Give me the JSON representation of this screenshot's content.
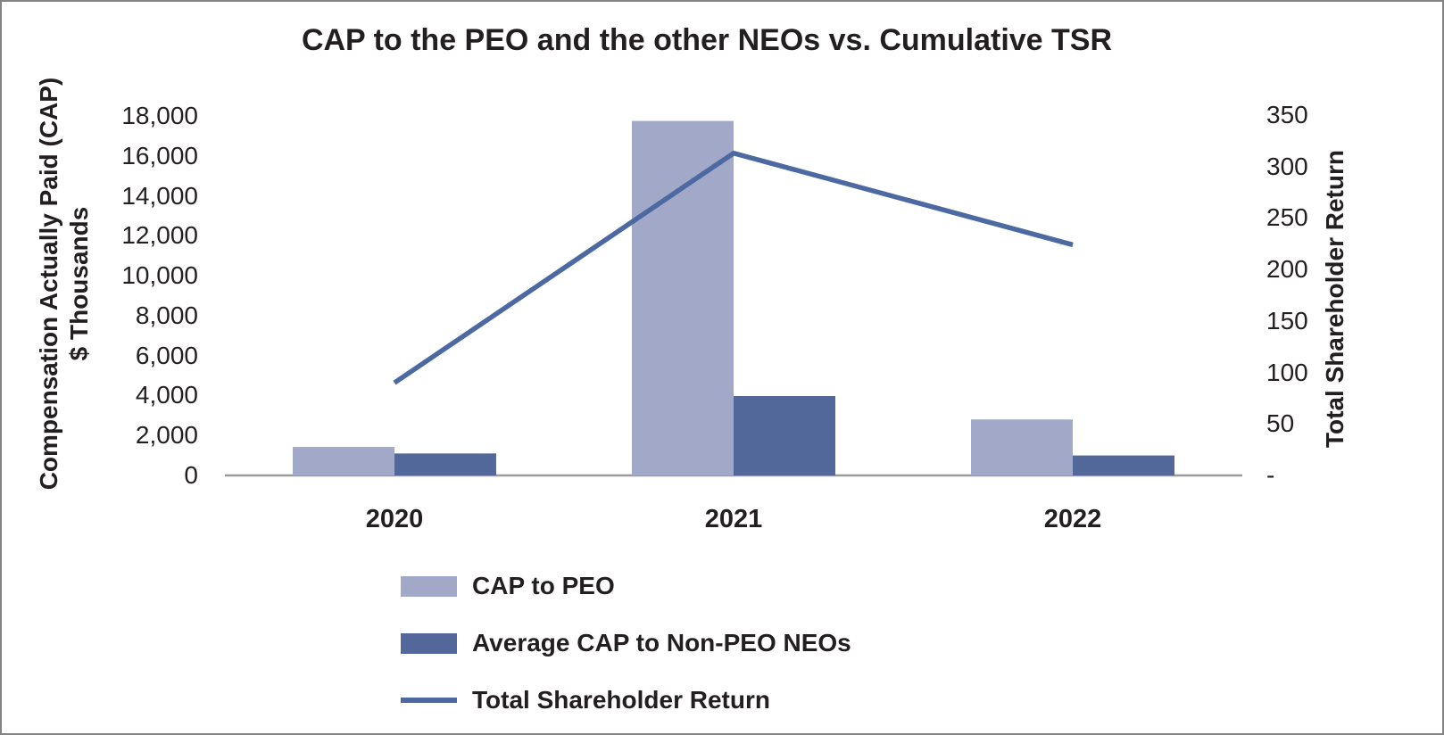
{
  "chart_data": {
    "type": "combo-bar-line",
    "title": "CAP to the PEO and the other NEOs vs. Cumulative TSR",
    "categories": [
      "2020",
      "2021",
      "2022"
    ],
    "series": [
      {
        "name": "CAP to PEO",
        "type": "bar",
        "axis": "left",
        "color": "#a2a8c7",
        "values": [
          1425,
          17750,
          2800
        ]
      },
      {
        "name": "Average CAP to Non-PEO NEOs",
        "type": "bar",
        "axis": "left",
        "color": "#52689a",
        "values": [
          1100,
          3975,
          1000
        ]
      },
      {
        "name": "Total Shareholder Return",
        "type": "line",
        "axis": "right",
        "color": "#4c69a2",
        "values": [
          90,
          313,
          224
        ]
      }
    ],
    "left_axis": {
      "title_line1": "Compensation Actually Paid (CAP)",
      "title_line2": "$ Thousands",
      "min": 0,
      "max": 18000,
      "ticks": [
        {
          "label": "18,000",
          "value": 18000
        },
        {
          "label": "16,000",
          "value": 16000
        },
        {
          "label": "14,000",
          "value": 14000
        },
        {
          "label": "12,000",
          "value": 12000
        },
        {
          "label": "10,000",
          "value": 10000
        },
        {
          "label": "8,000",
          "value": 8000
        },
        {
          "label": "6,000",
          "value": 6000
        },
        {
          "label": "4,000",
          "value": 4000
        },
        {
          "label": "2,000",
          "value": 2000
        },
        {
          "label": "0",
          "value": 0
        }
      ]
    },
    "right_axis": {
      "title": "Total Shareholder Return",
      "min": 0,
      "max": 350,
      "ticks": [
        {
          "label": "350",
          "value": 350
        },
        {
          "label": "300",
          "value": 300
        },
        {
          "label": "250",
          "value": 250
        },
        {
          "label": "200",
          "value": 200
        },
        {
          "label": "150",
          "value": 150
        },
        {
          "label": "100",
          "value": 100
        },
        {
          "label": "50",
          "value": 50
        },
        {
          "label": "-",
          "value": 0
        }
      ]
    },
    "grid": false,
    "legend_position": "bottom-left"
  },
  "colors": {
    "axis_line": "#9b9b9b",
    "text": "#231f20",
    "border": "#838383",
    "background": "#ffffff"
  }
}
